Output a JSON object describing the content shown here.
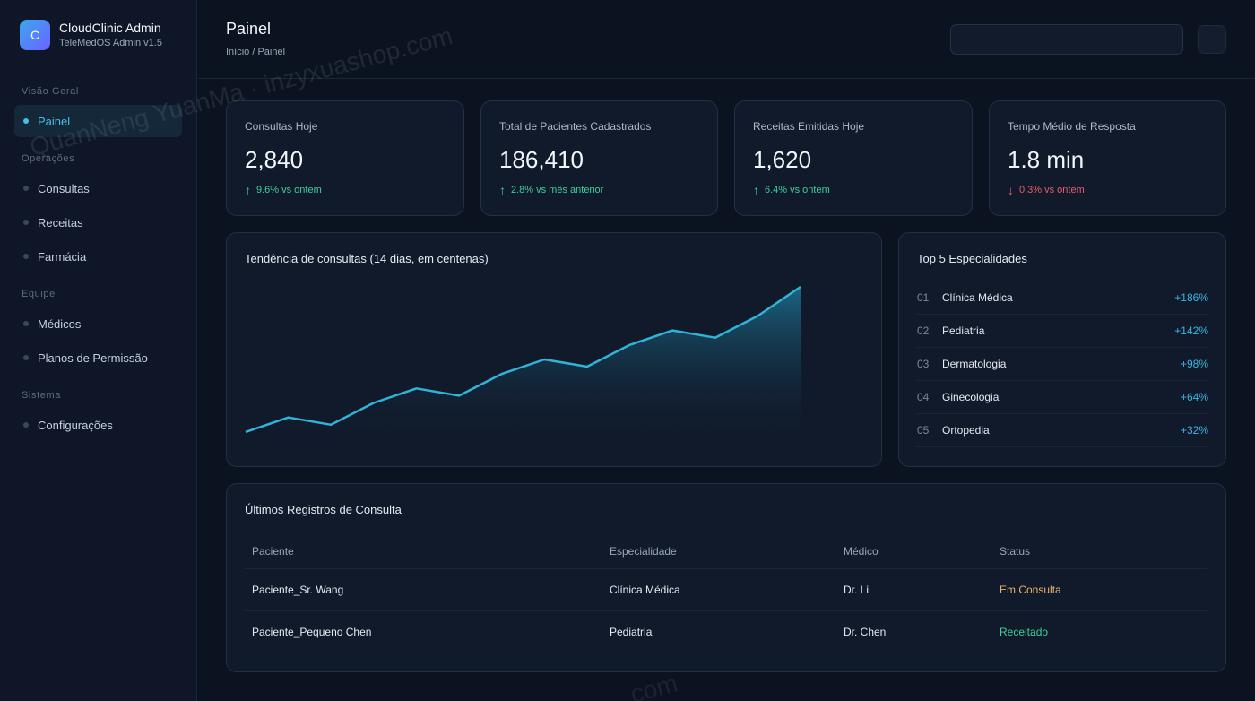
{
  "brand": {
    "logo_letter": "C",
    "title": "CloudClinic Admin",
    "subtitle": "TeleMedOS Admin v1.5"
  },
  "sidebar": {
    "sections": [
      {
        "label": "Visão Geral",
        "items": [
          {
            "label": "Painel",
            "active": true
          }
        ]
      },
      {
        "label": "Operações",
        "items": [
          {
            "label": "Consultas"
          },
          {
            "label": "Receitas"
          },
          {
            "label": "Farmácia"
          }
        ]
      },
      {
        "label": "Equipe",
        "items": [
          {
            "label": "Médicos"
          },
          {
            "label": "Planos de Permissão"
          }
        ]
      },
      {
        "label": "Sistema",
        "items": [
          {
            "label": "Configurações"
          }
        ]
      }
    ]
  },
  "header": {
    "title": "Painel",
    "breadcrumb": "Início / Painel",
    "search_placeholder": ""
  },
  "stats": [
    {
      "label": "Consultas Hoje",
      "value": "2,840",
      "delta": "9.6% vs ontem",
      "direction": "up",
      "arrow": "↑"
    },
    {
      "label": "Total de Pacientes Cadastrados",
      "value": "186,410",
      "delta": "2.8% vs mês anterior",
      "direction": "up",
      "arrow": "↑"
    },
    {
      "label": "Receitas Emitidas Hoje",
      "value": "1,620",
      "delta": "6.4% vs ontem",
      "direction": "up",
      "arrow": "↑"
    },
    {
      "label": "Tempo Médio de Resposta",
      "value": "1.8 min",
      "delta": "0.3% vs ontem",
      "direction": "down",
      "arrow": "↓"
    }
  ],
  "trend": {
    "title": "Tendência de consultas (14 dias, em centenas)"
  },
  "chart_data": {
    "type": "area",
    "title": "Tendência de consultas (14 dias, em centenas)",
    "x": [
      1,
      2,
      3,
      4,
      5,
      6,
      7,
      8,
      9,
      10,
      11,
      12,
      13,
      14
    ],
    "values": [
      12,
      14,
      13,
      16,
      18,
      17,
      20,
      22,
      21,
      24,
      26,
      25,
      28,
      32
    ],
    "ylim": [
      11,
      32
    ],
    "color": "#2fb4d8",
    "grid": false
  },
  "top_specialties": {
    "title": "Top 5 Especialidades",
    "items": [
      {
        "rank": "01",
        "name": "Clínica Médica",
        "pct": "+186%"
      },
      {
        "rank": "02",
        "name": "Pediatria",
        "pct": "+142%"
      },
      {
        "rank": "03",
        "name": "Dermatologia",
        "pct": "+98%"
      },
      {
        "rank": "04",
        "name": "Ginecologia",
        "pct": "+64%"
      },
      {
        "rank": "05",
        "name": "Ortopedia",
        "pct": "+32%"
      }
    ]
  },
  "records": {
    "title": "Últimos Registros de Consulta",
    "columns": [
      "Paciente",
      "Especialidade",
      "Médico",
      "Status"
    ],
    "rows": [
      {
        "patient": "Paciente_Sr. Wang",
        "specialty": "Clínica Médica",
        "doctor": "Dr. Li",
        "status": "Em Consulta",
        "status_type": "consult"
      },
      {
        "patient": "Paciente_Pequeno Chen",
        "specialty": "Pediatria",
        "doctor": "Dr. Chen",
        "status": "Receitado",
        "status_type": "prescribed"
      }
    ]
  },
  "watermark": "QuanNeng YuanMa · inzyxuashop.com",
  "watermark_bottom": "com",
  "colors": {
    "accent": "#3fc2e6",
    "up": "#3ccf9b",
    "down": "#e55d6a",
    "status_consult": "#e7b36a"
  }
}
